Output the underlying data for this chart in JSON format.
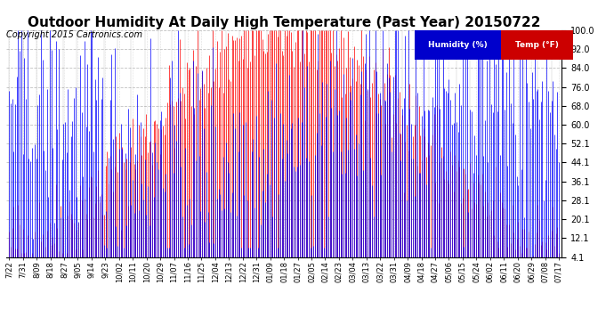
{
  "title": "Outdoor Humidity At Daily High Temperature (Past Year) 20150722",
  "copyright": "Copyright 2015 Cartronics.com",
  "legend_blue": "Humidity (%)",
  "legend_red": "Temp (°F)",
  "yticks": [
    4.1,
    12.1,
    20.1,
    28.1,
    36.1,
    44.1,
    52.1,
    60.0,
    68.0,
    76.0,
    84.0,
    92.0,
    100.0
  ],
  "ylim": [
    4.1,
    100.0
  ],
  "bg_color": "#ffffff",
  "grid_color": "#bbbbbb",
  "blue_color": "#0000ff",
  "red_color": "#ff0000",
  "black_color": "#000000",
  "title_fontsize": 11,
  "copyright_fontsize": 7,
  "legend_bg_blue": "#0000cc",
  "legend_bg_red": "#cc0000",
  "n_points": 366,
  "seed": 42,
  "xtick_labels": [
    "7/22",
    "7/31",
    "8/09",
    "8/18",
    "8/27",
    "9/05",
    "9/14",
    "9/23",
    "10/02",
    "10/11",
    "10/20",
    "10/29",
    "11/07",
    "11/16",
    "11/25",
    "12/04",
    "12/13",
    "12/22",
    "12/31",
    "01/09",
    "01/18",
    "01/27",
    "02/05",
    "02/14",
    "02/23",
    "03/04",
    "03/13",
    "03/22",
    "03/31",
    "04/09",
    "04/18",
    "04/27",
    "05/06",
    "05/15",
    "05/24",
    "06/02",
    "06/11",
    "06/20",
    "06/29",
    "07/08",
    "07/17"
  ]
}
